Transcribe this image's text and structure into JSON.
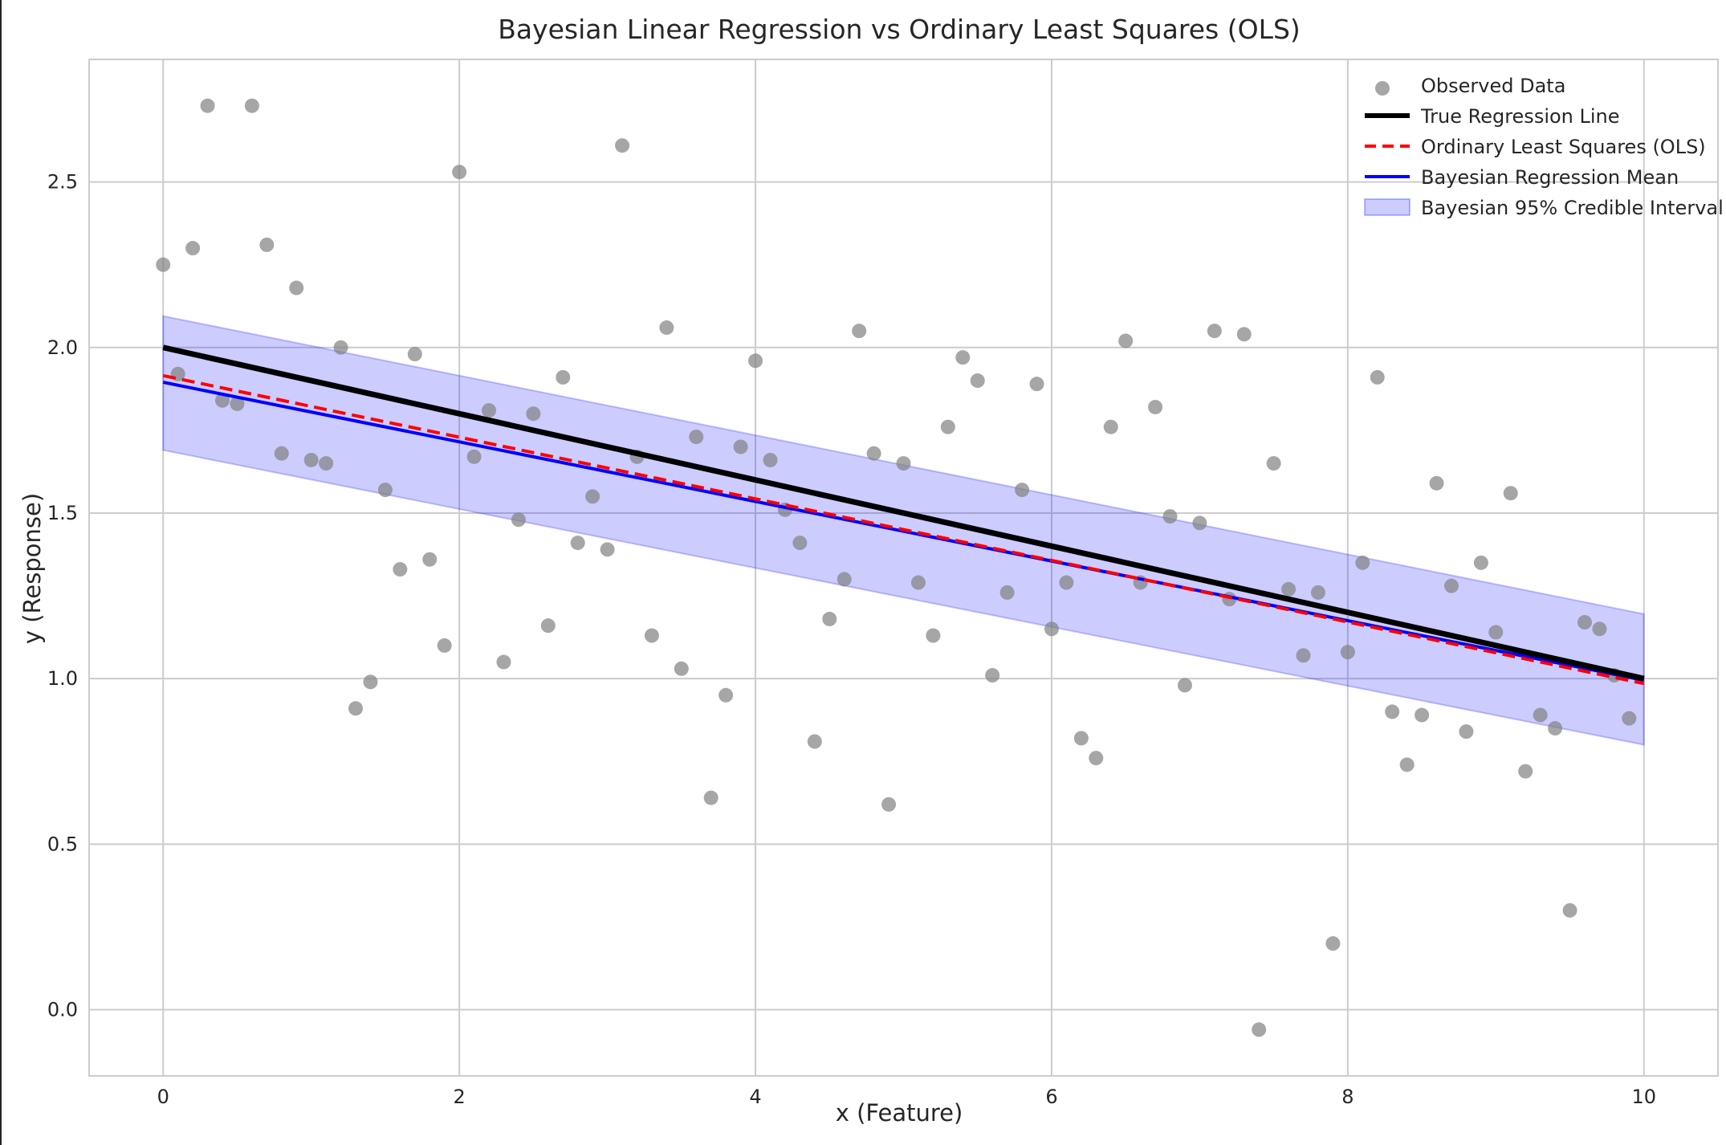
{
  "chart_data": {
    "type": "scatter",
    "title": "Bayesian Linear Regression vs Ordinary Least Squares (OLS)",
    "xlabel": "x (Feature)",
    "ylabel": "y (Response)",
    "xlim": [
      -0.5,
      10.5
    ],
    "ylim": [
      -0.2,
      2.87
    ],
    "xticks": [
      0,
      2,
      4,
      6,
      8,
      10
    ],
    "yticks": [
      0.0,
      0.5,
      1.0,
      1.5,
      2.0,
      2.5
    ],
    "xtick_labels": [
      "0",
      "2",
      "4",
      "6",
      "8",
      "10"
    ],
    "ytick_labels": [
      "0.0",
      "0.5",
      "1.0",
      "1.5",
      "2.0",
      "2.5"
    ],
    "grid": true,
    "legend_position": "top-right",
    "legend": [
      {
        "label": "Observed Data",
        "kind": "marker",
        "color": "#808080"
      },
      {
        "label": "True Regression Line",
        "kind": "line",
        "color": "#000000",
        "dash": "solid"
      },
      {
        "label": "Ordinary Least Squares (OLS)",
        "kind": "line",
        "color": "#ff0000",
        "dash": "dashed"
      },
      {
        "label": "Bayesian Regression Mean",
        "kind": "line",
        "color": "#0000ff",
        "dash": "solid"
      },
      {
        "label": "Bayesian 95% Credible Interval",
        "kind": "band",
        "color": "#0000ff"
      }
    ],
    "series": [
      {
        "name": "Observed Data",
        "kind": "scatter",
        "color": "#808080",
        "points": [
          [
            0.0,
            2.25
          ],
          [
            0.1,
            1.92
          ],
          [
            0.2,
            2.3
          ],
          [
            0.3,
            2.73
          ],
          [
            0.4,
            1.84
          ],
          [
            0.5,
            1.83
          ],
          [
            0.6,
            2.73
          ],
          [
            0.7,
            2.31
          ],
          [
            0.8,
            1.68
          ],
          [
            0.9,
            2.18
          ],
          [
            1.0,
            1.66
          ],
          [
            1.1,
            1.65
          ],
          [
            1.2,
            2.0
          ],
          [
            1.3,
            0.91
          ],
          [
            1.4,
            0.99
          ],
          [
            1.5,
            1.57
          ],
          [
            1.6,
            1.33
          ],
          [
            1.7,
            1.98
          ],
          [
            1.8,
            1.36
          ],
          [
            1.9,
            1.1
          ],
          [
            2.0,
            2.53
          ],
          [
            2.1,
            1.67
          ],
          [
            2.2,
            1.81
          ],
          [
            2.3,
            1.05
          ],
          [
            2.4,
            1.48
          ],
          [
            2.5,
            1.8
          ],
          [
            2.6,
            1.16
          ],
          [
            2.7,
            1.91
          ],
          [
            2.8,
            1.41
          ],
          [
            2.9,
            1.55
          ],
          [
            3.0,
            1.39
          ],
          [
            3.1,
            2.61
          ],
          [
            3.2,
            1.67
          ],
          [
            3.3,
            1.13
          ],
          [
            3.4,
            2.06
          ],
          [
            3.5,
            1.03
          ],
          [
            3.6,
            1.73
          ],
          [
            3.7,
            0.64
          ],
          [
            3.8,
            0.95
          ],
          [
            3.9,
            1.7
          ],
          [
            4.0,
            1.96
          ],
          [
            4.1,
            1.66
          ],
          [
            4.2,
            1.51
          ],
          [
            4.3,
            1.41
          ],
          [
            4.4,
            0.81
          ],
          [
            4.5,
            1.18
          ],
          [
            4.6,
            1.3
          ],
          [
            4.7,
            2.05
          ],
          [
            4.8,
            1.68
          ],
          [
            4.9,
            0.62
          ],
          [
            5.0,
            1.65
          ],
          [
            5.1,
            1.29
          ],
          [
            5.2,
            1.13
          ],
          [
            5.3,
            1.76
          ],
          [
            5.4,
            1.97
          ],
          [
            5.5,
            1.9
          ],
          [
            5.6,
            1.01
          ],
          [
            5.7,
            1.26
          ],
          [
            5.8,
            1.57
          ],
          [
            5.9,
            1.89
          ],
          [
            6.0,
            1.15
          ],
          [
            6.1,
            1.29
          ],
          [
            6.2,
            0.82
          ],
          [
            6.3,
            0.76
          ],
          [
            6.4,
            1.76
          ],
          [
            6.5,
            2.02
          ],
          [
            6.6,
            1.29
          ],
          [
            6.7,
            1.82
          ],
          [
            6.8,
            1.49
          ],
          [
            6.9,
            0.98
          ],
          [
            7.0,
            1.47
          ],
          [
            7.1,
            2.05
          ],
          [
            7.2,
            1.24
          ],
          [
            7.3,
            2.04
          ],
          [
            7.4,
            -0.06
          ],
          [
            7.5,
            1.65
          ],
          [
            7.6,
            1.27
          ],
          [
            7.7,
            1.07
          ],
          [
            7.8,
            1.26
          ],
          [
            7.9,
            0.2
          ],
          [
            8.0,
            1.08
          ],
          [
            8.1,
            1.35
          ],
          [
            8.2,
            1.91
          ],
          [
            8.3,
            0.9
          ],
          [
            8.4,
            0.74
          ],
          [
            8.5,
            0.89
          ],
          [
            8.6,
            1.59
          ],
          [
            8.7,
            1.28
          ],
          [
            8.8,
            0.84
          ],
          [
            8.9,
            1.35
          ],
          [
            9.0,
            1.14
          ],
          [
            9.1,
            1.56
          ],
          [
            9.2,
            0.72
          ],
          [
            9.3,
            0.89
          ],
          [
            9.4,
            0.85
          ],
          [
            9.5,
            0.3
          ],
          [
            9.6,
            1.17
          ],
          [
            9.7,
            1.15
          ],
          [
            9.8,
            1.01
          ],
          [
            9.9,
            0.88
          ]
        ]
      },
      {
        "name": "True Regression Line",
        "kind": "line",
        "color": "#000000",
        "dash": "solid",
        "x": [
          0,
          10
        ],
        "y": [
          2.0,
          1.0
        ]
      },
      {
        "name": "Ordinary Least Squares (OLS)",
        "kind": "line",
        "color": "#ff0000",
        "dash": "dashed",
        "x": [
          0,
          10
        ],
        "y": [
          1.915,
          0.985
        ]
      },
      {
        "name": "Bayesian Regression Mean",
        "kind": "line",
        "color": "#0000ff",
        "dash": "solid",
        "x": [
          0,
          10
        ],
        "y": [
          1.895,
          0.995
        ]
      },
      {
        "name": "Bayesian 95% Credible Interval",
        "kind": "band",
        "color": "#0000ff",
        "x": [
          0,
          10
        ],
        "lower": [
          1.69,
          0.8
        ],
        "upper": [
          2.095,
          1.195
        ]
      }
    ]
  }
}
